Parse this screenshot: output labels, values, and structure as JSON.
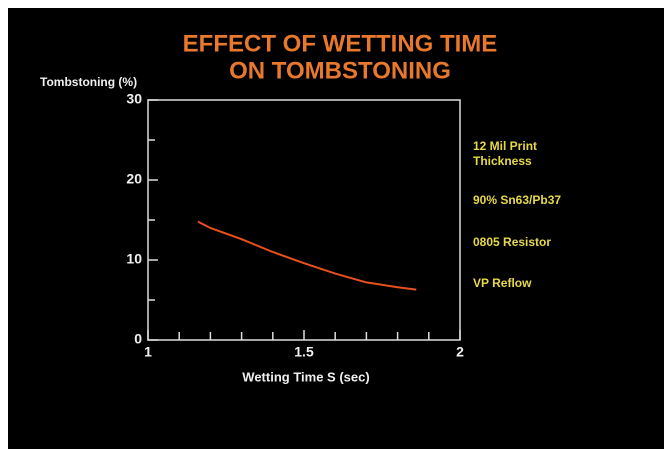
{
  "chart_data": {
    "type": "line",
    "title": [
      "EFFECT OF WETTING TIME",
      "ON TOMBSTONING"
    ],
    "ylabel": "Tombstoning (%)",
    "xlabel": "Wetting Time S (sec)",
    "x": [
      1.16,
      1.2,
      1.3,
      1.4,
      1.5,
      1.6,
      1.7,
      1.8,
      1.86
    ],
    "series": [
      {
        "color": "#e8501e",
        "values": [
          14.8,
          14.0,
          12.6,
          11.0,
          9.6,
          8.3,
          7.2,
          6.6,
          6.3
        ]
      }
    ],
    "xlim": [
      1,
      2
    ],
    "xticks": [
      1,
      1.5,
      2
    ],
    "xminorticks": [
      1.1,
      1.2,
      1.3,
      1.4,
      1.6,
      1.7,
      1.8,
      1.9
    ],
    "ylim": [
      0,
      30
    ],
    "yticks": [
      0,
      10,
      20,
      30
    ],
    "yminorticks": [
      5,
      15,
      25
    ],
    "annotations": [
      [
        "12 Mil Print",
        "Thickness"
      ],
      [
        "90% Sn63/Pb37"
      ],
      [
        "0805 Resistor"
      ],
      [
        "VP Reflow"
      ]
    ]
  }
}
